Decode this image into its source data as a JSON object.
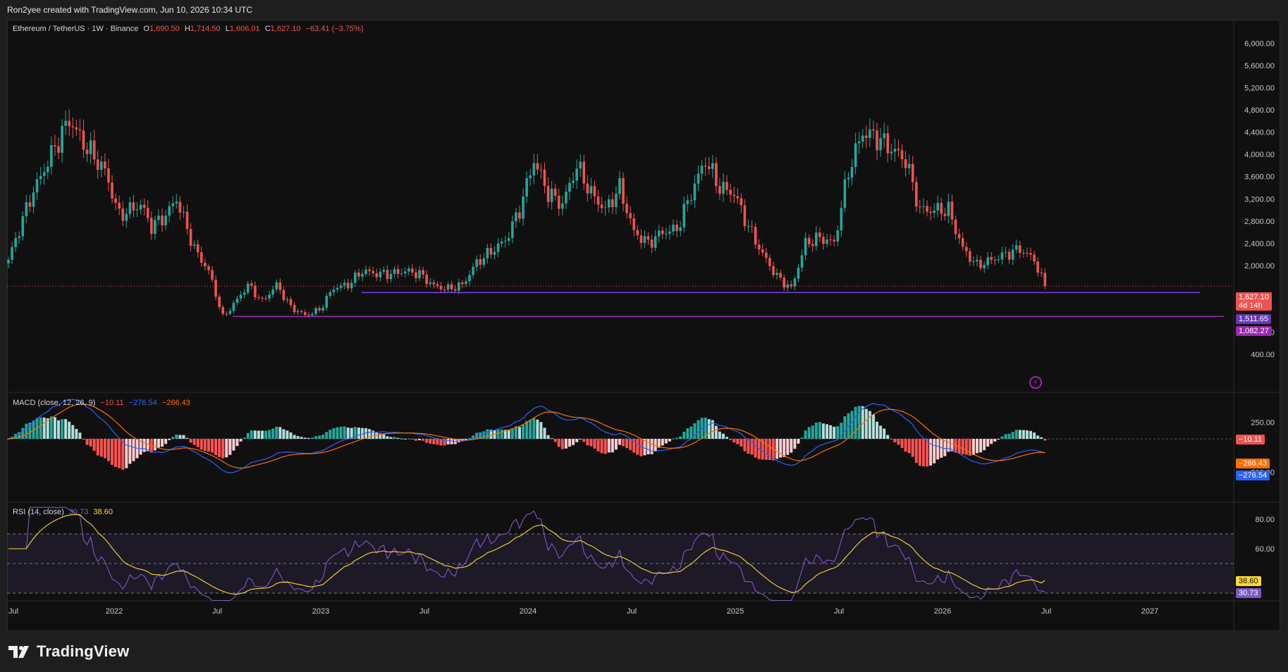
{
  "header": {
    "credit": "Ron2yee created with TradingView.com, Jun 10, 2026 10:34 UTC"
  },
  "legend": {
    "symbol": "Ethereum / TetherUS · 1W · Binance",
    "o_label": "O",
    "o_value": "1,690.50",
    "h_label": "H",
    "h_value": "1,714.50",
    "l_label": "L",
    "l_value": "1,606.01",
    "c_label": "C",
    "c_value": "1,627.10",
    "change": "−63.41 (−3.75%)"
  },
  "macd_legend": {
    "title": "MACD (close, 12, 26, 9)",
    "hist": "−10.11",
    "macd": "−276.54",
    "signal": "−266.43"
  },
  "rsi_legend": {
    "title": "RSI (14, close)",
    "rsi": "30.73",
    "ma": "38.60"
  },
  "price_tags": {
    "last": "1,627.10",
    "countdown": "4d 14h",
    "line1": "1,511.65",
    "line2": "1,082.27"
  },
  "macd_tags": {
    "hist": "−10.11",
    "signal": "−266.43",
    "macd": "−276.54"
  },
  "rsi_tags": {
    "ma": "38.60",
    "rsi": "30.73"
  },
  "footer": {
    "brand": "TradingView"
  },
  "colors": {
    "up": "#26a69a",
    "down": "#ef5350",
    "macd": "#2962ff",
    "signal": "#ff6d00",
    "rsi": "#7e57c2",
    "rsi_ma": "#fdd835",
    "hline": "#9c27b0"
  },
  "chart_data": [
    {
      "type": "candlestick",
      "title": "Ethereum / TetherUS · 1W · Binance",
      "x_ticks": [
        "Jul",
        "2022",
        "Jul",
        "2023",
        "Jul",
        "2024",
        "Jul",
        "2025",
        "Jul",
        "2026",
        "Jul",
        "2027"
      ],
      "y_ticks": [
        "6,000.00",
        "5,600.00",
        "5,200.00",
        "4,800.00",
        "4,400.00",
        "4,000.00",
        "3,600.00",
        "3,200.00",
        "2,800.00",
        "2,400.00",
        "2,000.00",
        "800.00",
        "400.00"
      ],
      "y_tick_values": [
        6000,
        5600,
        5200,
        4800,
        4400,
        4000,
        3600,
        3200,
        2800,
        2400,
        2000,
        800,
        400
      ],
      "horizontal_lines": [
        1511.65,
        1082.27
      ],
      "last_close": 1627.1,
      "weekly_close_anchors": [
        [
          0,
          2100
        ],
        [
          6,
          3200
        ],
        [
          12,
          4000
        ],
        [
          17,
          4630
        ],
        [
          21,
          4200
        ],
        [
          27,
          3700
        ],
        [
          31,
          2900
        ],
        [
          37,
          3100
        ],
        [
          40,
          2700
        ],
        [
          44,
          2900
        ],
        [
          47,
          3200
        ],
        [
          52,
          2300
        ],
        [
          56,
          1900
        ],
        [
          60,
          1070
        ],
        [
          63,
          1300
        ],
        [
          67,
          1650
        ],
        [
          71,
          1350
        ],
        [
          75,
          1650
        ],
        [
          79,
          1250
        ],
        [
          83,
          1100
        ],
        [
          87,
          1200
        ],
        [
          91,
          1600
        ],
        [
          95,
          1650
        ],
        [
          99,
          1900
        ],
        [
          103,
          1850
        ],
        [
          107,
          1850
        ],
        [
          111,
          1900
        ],
        [
          115,
          1850
        ],
        [
          119,
          1630
        ],
        [
          123,
          1580
        ],
        [
          127,
          1650
        ],
        [
          131,
          2050
        ],
        [
          135,
          2250
        ],
        [
          139,
          2450
        ],
        [
          143,
          3000
        ],
        [
          147,
          3900
        ],
        [
          151,
          3300
        ],
        [
          155,
          3100
        ],
        [
          159,
          3800
        ],
        [
          163,
          3300
        ],
        [
          167,
          3000
        ],
        [
          171,
          3400
        ],
        [
          175,
          2600
        ],
        [
          179,
          2400
        ],
        [
          183,
          2600
        ],
        [
          187,
          2650
        ],
        [
          191,
          3300
        ],
        [
          195,
          3900
        ],
        [
          199,
          3400
        ],
        [
          203,
          3300
        ],
        [
          207,
          2700
        ],
        [
          211,
          2200
        ],
        [
          215,
          1800
        ],
        [
          219,
          1580
        ],
        [
          223,
          2400
        ],
        [
          227,
          2500
        ],
        [
          231,
          2400
        ],
        [
          235,
          3700
        ],
        [
          239,
          4400
        ],
        [
          243,
          4300
        ],
        [
          247,
          4100
        ],
        [
          251,
          3900
        ],
        [
          255,
          3000
        ],
        [
          259,
          3000
        ],
        [
          263,
          3000
        ],
        [
          267,
          2300
        ],
        [
          271,
          2000
        ],
        [
          275,
          2100
        ],
        [
          279,
          2200
        ],
        [
          283,
          2300
        ],
        [
          287,
          2100
        ],
        [
          290,
          1627
        ]
      ]
    },
    {
      "type": "line",
      "title": "MACD (close, 12, 26, 9)",
      "y_ticks": [
        "250.00",
        "−500.00"
      ],
      "y_tick_values": [
        250,
        -500
      ],
      "series": [
        {
          "name": "MACD",
          "last": -276.54
        },
        {
          "name": "Signal",
          "last": -266.43
        },
        {
          "name": "Histogram",
          "last": -10.11
        }
      ]
    },
    {
      "type": "line",
      "title": "RSI (14, close)",
      "y_ticks": [
        "80.00",
        "60.00"
      ],
      "y_tick_values": [
        80,
        60
      ],
      "bands": [
        70,
        50,
        30
      ],
      "series": [
        {
          "name": "RSI",
          "last": 30.73
        },
        {
          "name": "RSI MA",
          "last": 38.6
        }
      ]
    }
  ]
}
